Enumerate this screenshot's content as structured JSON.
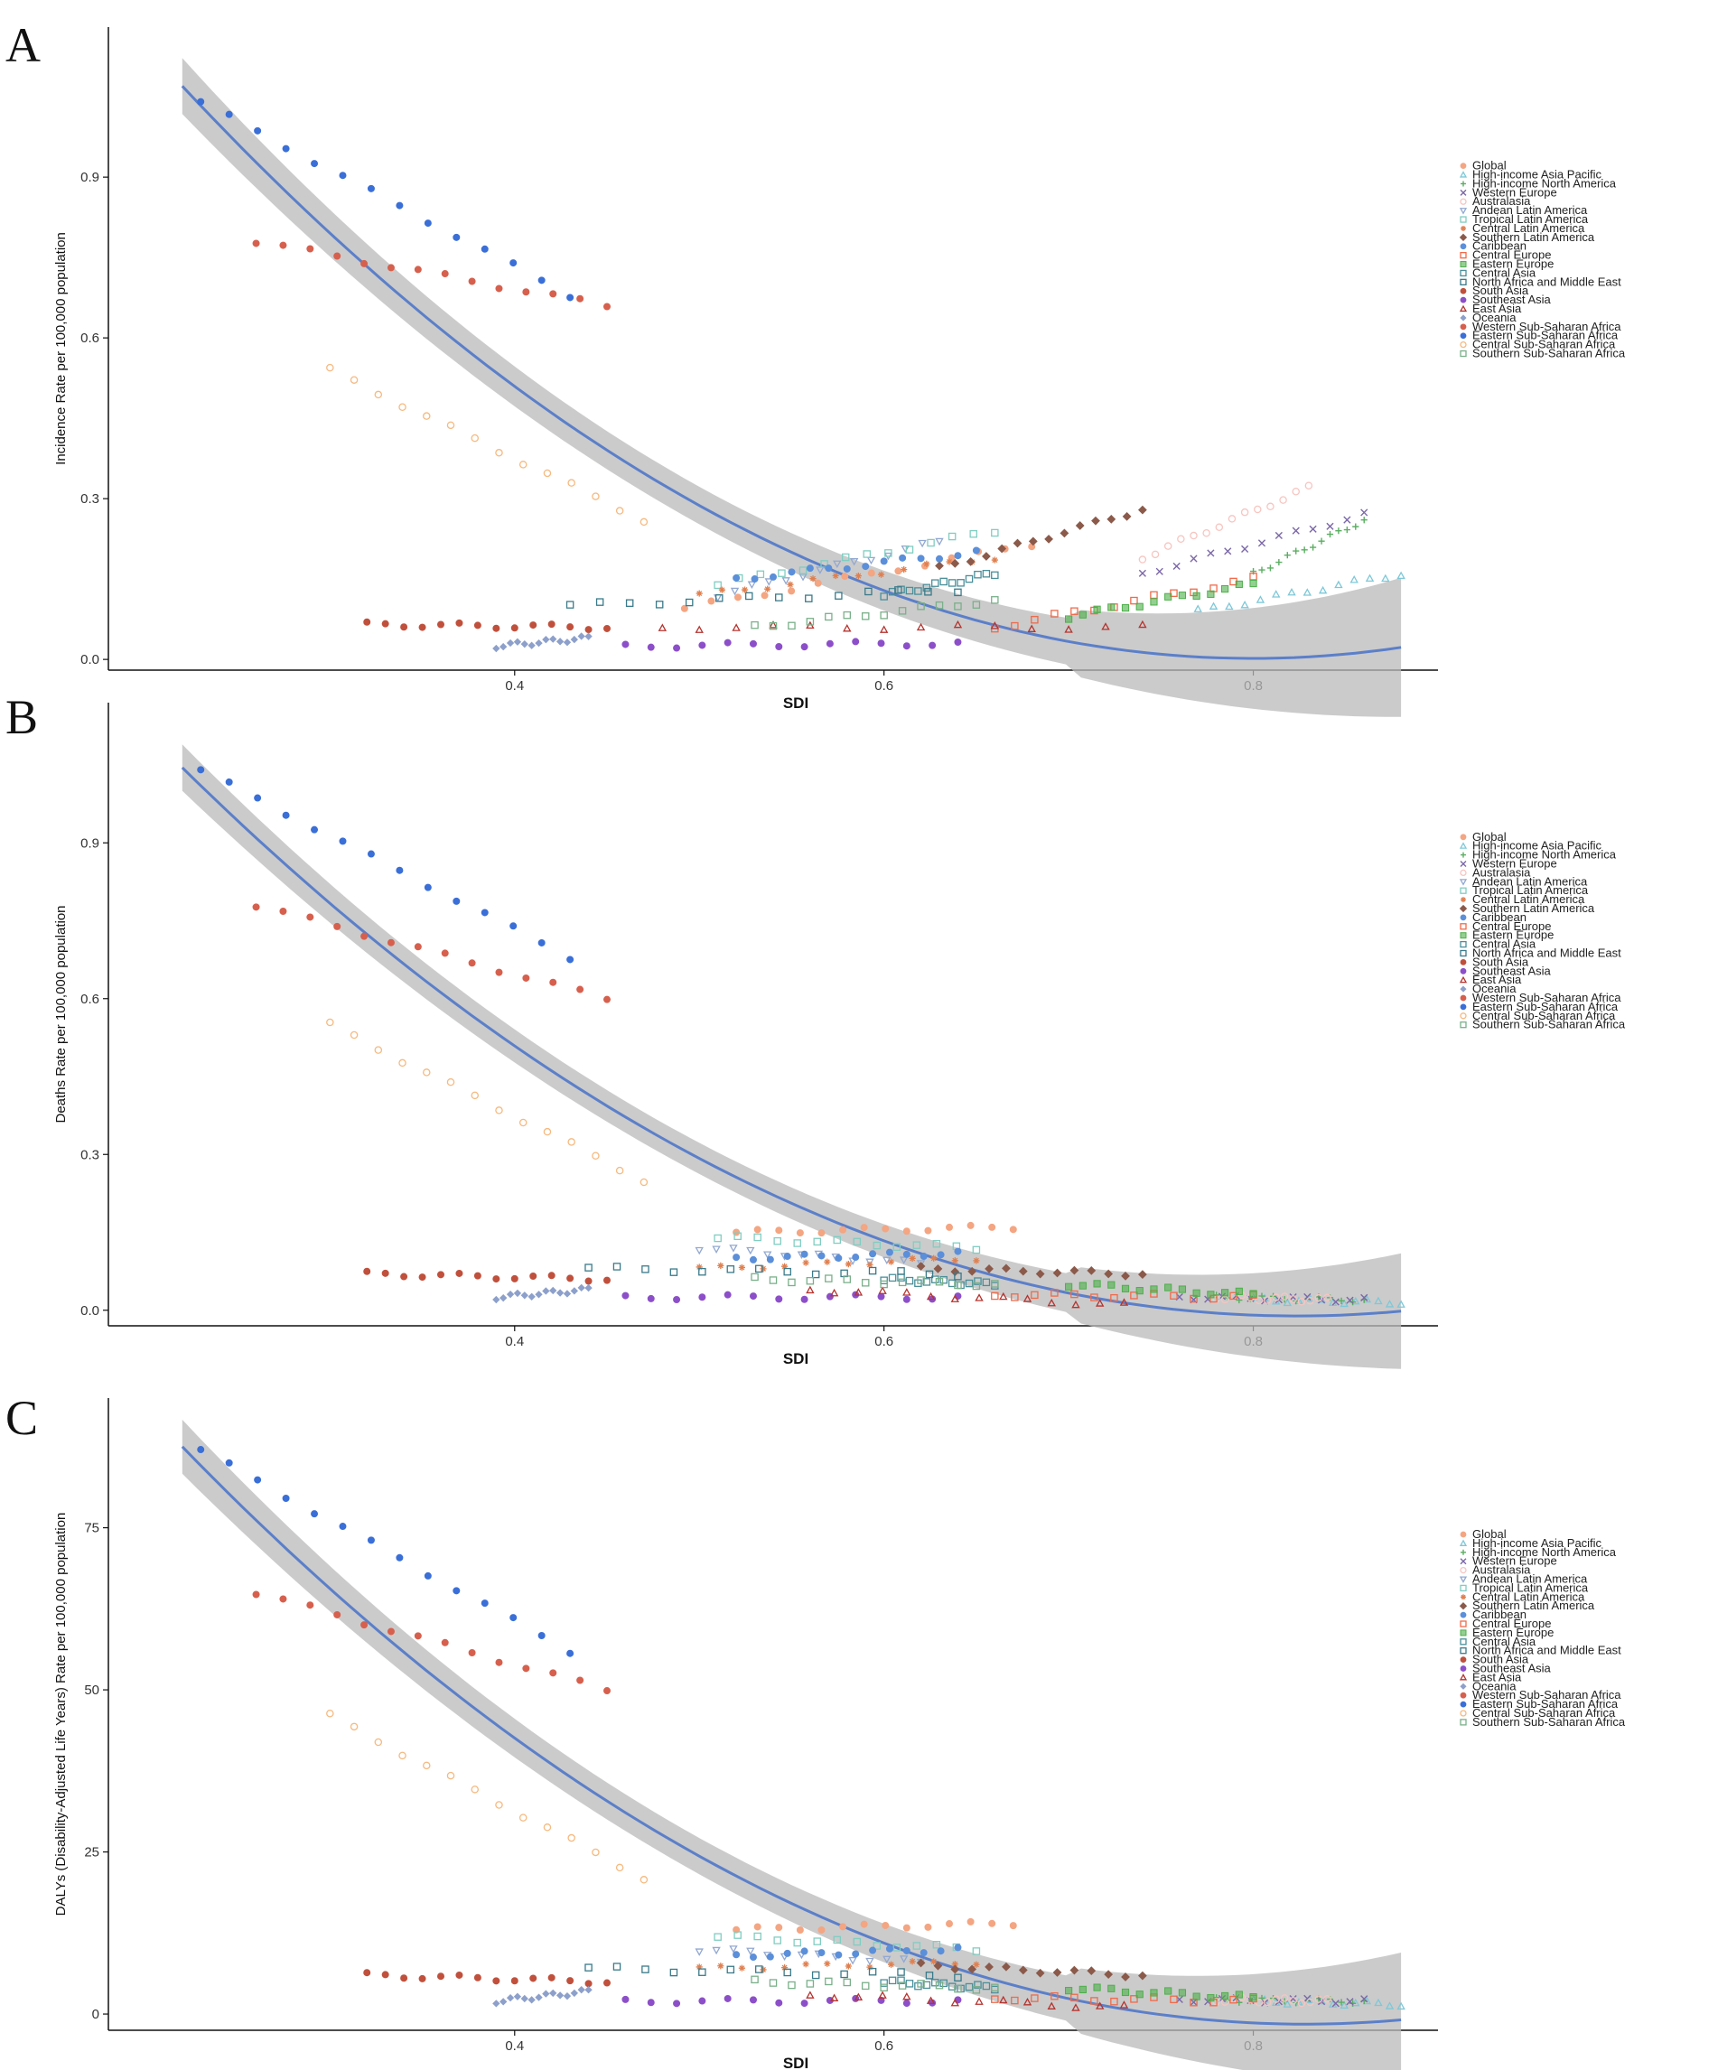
{
  "figure": {
    "colors": {
      "trend": "#5b7fc9",
      "band": "#b9b9b9",
      "axis": "#111111",
      "series": [
        "#f4a582",
        "#7ec8d8",
        "#5aae61",
        "#7b68a8",
        "#f7c5c0",
        "#92a8d1",
        "#80cdc1",
        "#e08050",
        "#8b5a4a",
        "#5b8fd9",
        "#f06a4a",
        "#4daf4a",
        "#4a8f9a",
        "#3a7a8a",
        "#c0503c",
        "#8c4fc9",
        "#b5332e",
        "#8da0cb",
        "#d6604d",
        "#3a6fd8",
        "#f6b97f",
        "#7ab08a"
      ]
    },
    "x_label": "SDI",
    "legend": [
      "Global",
      "High-income Asia Pacific",
      "High-income North America",
      "Western Europe",
      "Australasia",
      "Andean Latin America",
      "Tropical Latin America",
      "Central Latin America",
      "Southern Latin America",
      "Caribbean",
      "Central Europe",
      "Eastern Europe",
      "Central Asia",
      "North Africa and Middle East",
      "South Asia",
      "Southeast Asia",
      "East Asia",
      "Oceania",
      "Western Sub-Saharan Africa",
      "Eastern Sub-Saharan Africa",
      "Central Sub-Saharan Africa",
      "Southern Sub-Saharan Africa"
    ]
  },
  "chart_data": [
    {
      "type": "scatter",
      "panel": "A",
      "title": "",
      "xlabel": "SDI",
      "ylabel": "Incidence Rate per 100,000 population",
      "xlim": [
        0.18,
        0.9
      ],
      "ylim": [
        -0.02,
        1.18
      ],
      "x_ticks": [
        "0.4",
        "0.6",
        "0.8"
      ],
      "y_ticks": [
        "0.0",
        "0.3",
        "0.6",
        "0.9"
      ],
      "trend": {
        "a": 1.07,
        "b": -3.686,
        "c": 3.18,
        "x0": 0.22,
        "x1": 0.88,
        "band_width": 0.035
      },
      "series": [
        {
          "name": "Global",
          "x": [
            0.492,
            0.68
          ],
          "y": [
            0.095,
            0.215
          ]
        },
        {
          "name": "High-income Asia Pacific",
          "x": [
            0.77,
            0.88
          ],
          "y": [
            0.09,
            0.16
          ]
        },
        {
          "name": "High-income North America",
          "x": [
            0.8,
            0.86
          ],
          "y": [
            0.16,
            0.26
          ]
        },
        {
          "name": "Western Europe",
          "x": [
            0.74,
            0.86
          ],
          "y": [
            0.16,
            0.27
          ]
        },
        {
          "name": "Australasia",
          "x": [
            0.74,
            0.83
          ],
          "y": [
            0.19,
            0.32
          ]
        },
        {
          "name": "Andean Latin America",
          "x": [
            0.51,
            0.63
          ],
          "y": [
            0.12,
            0.22
          ]
        },
        {
          "name": "Tropical Latin America",
          "x": [
            0.51,
            0.66
          ],
          "y": [
            0.14,
            0.24
          ]
        },
        {
          "name": "Central Latin America",
          "x": [
            0.5,
            0.66
          ],
          "y": [
            0.12,
            0.19
          ]
        },
        {
          "name": "Southern Latin America",
          "x": [
            0.63,
            0.74
          ],
          "y": [
            0.17,
            0.28
          ]
        },
        {
          "name": "Caribbean",
          "x": [
            0.52,
            0.65
          ],
          "y": [
            0.15,
            0.2
          ]
        },
        {
          "name": "Central Europe",
          "x": [
            0.66,
            0.8
          ],
          "y": [
            0.06,
            0.15
          ]
        },
        {
          "name": "Eastern Europe",
          "x": [
            0.7,
            0.8
          ],
          "y": [
            0.08,
            0.14
          ]
        },
        {
          "name": "Central Asia",
          "x": [
            0.6,
            0.66
          ],
          "y": [
            0.12,
            0.16
          ]
        },
        {
          "name": "North Africa and Middle East",
          "x": [
            0.43,
            0.64
          ],
          "y": [
            0.1,
            0.13
          ]
        },
        {
          "name": "South Asia",
          "x": [
            0.32,
            0.45
          ],
          "y": [
            0.065,
            0.06
          ]
        },
        {
          "name": "Southeast Asia",
          "x": [
            0.46,
            0.64
          ],
          "y": [
            0.025,
            0.03
          ]
        },
        {
          "name": "East Asia",
          "x": [
            0.48,
            0.74
          ],
          "y": [
            0.06,
            0.06
          ]
        },
        {
          "name": "Oceania",
          "x": [
            0.39,
            0.44
          ],
          "y": [
            0.025,
            0.04
          ]
        },
        {
          "name": "Western Sub-Saharan Africa",
          "x": [
            0.26,
            0.45
          ],
          "y": [
            0.78,
            0.66
          ]
        },
        {
          "name": "Eastern Sub-Saharan Africa",
          "x": [
            0.23,
            0.43
          ],
          "y": [
            1.04,
            0.68
          ]
        },
        {
          "name": "Central Sub-Saharan Africa",
          "x": [
            0.3,
            0.47
          ],
          "y": [
            0.54,
            0.26
          ]
        },
        {
          "name": "Southern Sub-Saharan Africa",
          "x": [
            0.53,
            0.66
          ],
          "y": [
            0.06,
            0.11
          ]
        }
      ]
    },
    {
      "type": "scatter",
      "panel": "B",
      "title": "",
      "xlabel": "SDI",
      "ylabel": "Deaths Rate per 100,000 population",
      "xlim": [
        0.18,
        0.9
      ],
      "ylim": [
        -0.03,
        1.17
      ],
      "x_ticks": [
        "0.4",
        "0.6",
        "0.8"
      ],
      "y_ticks": [
        "0.0",
        "0.3",
        "0.6",
        "0.9"
      ],
      "trend": {
        "a": 1.045,
        "b": -3.5,
        "c": 2.9,
        "x0": 0.22,
        "x1": 0.88,
        "band_width": 0.03
      },
      "series": [
        {
          "name": "Global",
          "x": [
            0.52,
            0.67
          ],
          "y": [
            0.15,
            0.16
          ]
        },
        {
          "name": "High-income Asia Pacific",
          "x": [
            0.8,
            0.88
          ],
          "y": [
            0.02,
            0.015
          ]
        },
        {
          "name": "High-income North America",
          "x": [
            0.78,
            0.86
          ],
          "y": [
            0.025,
            0.02
          ]
        },
        {
          "name": "Western Europe",
          "x": [
            0.76,
            0.86
          ],
          "y": [
            0.025,
            0.02
          ]
        },
        {
          "name": "Australasia",
          "x": [
            0.78,
            0.84
          ],
          "y": [
            0.025,
            0.02
          ]
        },
        {
          "name": "Andean Latin America",
          "x": [
            0.5,
            0.62
          ],
          "y": [
            0.12,
            0.09
          ]
        },
        {
          "name": "Tropical Latin America",
          "x": [
            0.51,
            0.65
          ],
          "y": [
            0.14,
            0.12
          ]
        },
        {
          "name": "Central Latin America",
          "x": [
            0.5,
            0.65
          ],
          "y": [
            0.08,
            0.1
          ]
        },
        {
          "name": "Southern Latin America",
          "x": [
            0.62,
            0.74
          ],
          "y": [
            0.08,
            0.07
          ]
        },
        {
          "name": "Caribbean",
          "x": [
            0.52,
            0.64
          ],
          "y": [
            0.1,
            0.11
          ]
        },
        {
          "name": "Central Europe",
          "x": [
            0.66,
            0.8
          ],
          "y": [
            0.03,
            0.025
          ]
        },
        {
          "name": "Eastern Europe",
          "x": [
            0.7,
            0.8
          ],
          "y": [
            0.05,
            0.03
          ]
        },
        {
          "name": "Central Asia",
          "x": [
            0.6,
            0.66
          ],
          "y": [
            0.06,
            0.05
          ]
        },
        {
          "name": "North Africa and Middle East",
          "x": [
            0.44,
            0.64
          ],
          "y": [
            0.08,
            0.07
          ]
        },
        {
          "name": "South Asia",
          "x": [
            0.32,
            0.45
          ],
          "y": [
            0.07,
            0.06
          ]
        },
        {
          "name": "Southeast Asia",
          "x": [
            0.46,
            0.64
          ],
          "y": [
            0.025,
            0.025
          ]
        },
        {
          "name": "East Asia",
          "x": [
            0.56,
            0.73
          ],
          "y": [
            0.04,
            0.01
          ]
        },
        {
          "name": "Oceania",
          "x": [
            0.39,
            0.44
          ],
          "y": [
            0.025,
            0.04
          ]
        },
        {
          "name": "Western Sub-Saharan Africa",
          "x": [
            0.26,
            0.45
          ],
          "y": [
            0.78,
            0.6
          ]
        },
        {
          "name": "Eastern Sub-Saharan Africa",
          "x": [
            0.23,
            0.43
          ],
          "y": [
            1.04,
            0.68
          ]
        },
        {
          "name": "Central Sub-Saharan Africa",
          "x": [
            0.3,
            0.47
          ],
          "y": [
            0.55,
            0.25
          ]
        },
        {
          "name": "Southern Sub-Saharan Africa",
          "x": [
            0.53,
            0.66
          ],
          "y": [
            0.06,
            0.05
          ]
        }
      ]
    },
    {
      "type": "scatter",
      "panel": "C",
      "title": "",
      "xlabel": "SDI",
      "ylabel": "DALYs (Disability-Adjusted Life Years) Rate per 100,000 population",
      "xlim": [
        0.18,
        0.9
      ],
      "ylim": [
        -2.5,
        95
      ],
      "x_ticks": [
        "0.4",
        "0.6",
        "0.8"
      ],
      "y_ticks": [
        "0",
        "25",
        "50",
        "75"
      ],
      "trend": {
        "a": 87.5,
        "b": -293.0,
        "c": 241.0,
        "x0": 0.22,
        "x1": 0.88,
        "band_width": 2.8
      },
      "series": [
        {
          "name": "Global",
          "x": [
            0.52,
            0.67
          ],
          "y": [
            13,
            14
          ]
        },
        {
          "name": "High-income Asia Pacific",
          "x": [
            0.8,
            0.88
          ],
          "y": [
            2,
            1.5
          ]
        },
        {
          "name": "High-income North America",
          "x": [
            0.78,
            0.86
          ],
          "y": [
            2.2,
            2
          ]
        },
        {
          "name": "Western Europe",
          "x": [
            0.76,
            0.86
          ],
          "y": [
            2.2,
            2
          ]
        },
        {
          "name": "Australasia",
          "x": [
            0.78,
            0.84
          ],
          "y": [
            2.2,
            2
          ]
        },
        {
          "name": "Andean Latin America",
          "x": [
            0.5,
            0.62
          ],
          "y": [
            10,
            8
          ]
        },
        {
          "name": "Tropical Latin America",
          "x": [
            0.51,
            0.65
          ],
          "y": [
            12,
            10
          ]
        },
        {
          "name": "Central Latin America",
          "x": [
            0.5,
            0.65
          ],
          "y": [
            7,
            8
          ]
        },
        {
          "name": "Southern Latin America",
          "x": [
            0.62,
            0.74
          ],
          "y": [
            7.5,
            6
          ]
        },
        {
          "name": "Caribbean",
          "x": [
            0.52,
            0.64
          ],
          "y": [
            9,
            10
          ]
        },
        {
          "name": "Central Europe",
          "x": [
            0.66,
            0.8
          ],
          "y": [
            2.5,
            2
          ]
        },
        {
          "name": "Eastern Europe",
          "x": [
            0.7,
            0.8
          ],
          "y": [
            4,
            2.5
          ]
        },
        {
          "name": "Central Asia",
          "x": [
            0.6,
            0.66
          ],
          "y": [
            5,
            4
          ]
        },
        {
          "name": "North Africa and Middle East",
          "x": [
            0.44,
            0.64
          ],
          "y": [
            7,
            6
          ]
        },
        {
          "name": "South Asia",
          "x": [
            0.32,
            0.45
          ],
          "y": [
            6,
            5
          ]
        },
        {
          "name": "Southeast Asia",
          "x": [
            0.46,
            0.64
          ],
          "y": [
            2,
            2
          ]
        },
        {
          "name": "East Asia",
          "x": [
            0.56,
            0.73
          ],
          "y": [
            3,
            1
          ]
        },
        {
          "name": "Oceania",
          "x": [
            0.39,
            0.44
          ],
          "y": [
            2,
            3.5
          ]
        },
        {
          "name": "Western Sub-Saharan Africa",
          "x": [
            0.26,
            0.45
          ],
          "y": [
            65,
            50
          ]
        },
        {
          "name": "Eastern Sub-Saharan Africa",
          "x": [
            0.23,
            0.43
          ],
          "y": [
            87,
            56
          ]
        },
        {
          "name": "Central Sub-Saharan Africa",
          "x": [
            0.3,
            0.47
          ],
          "y": [
            46,
            21
          ]
        },
        {
          "name": "Southern Sub-Saharan Africa",
          "x": [
            0.53,
            0.66
          ],
          "y": [
            5,
            4
          ]
        }
      ]
    }
  ]
}
